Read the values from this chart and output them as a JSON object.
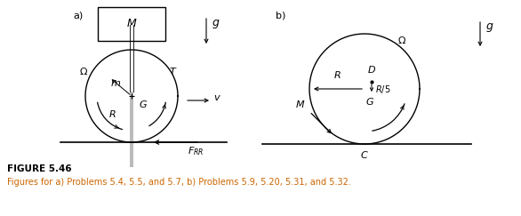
{
  "fig_width": 5.86,
  "fig_height": 2.43,
  "dpi": 100,
  "bg_color": "#ffffff",
  "text_color": "#000000",
  "orange_color": "#cc6600",
  "label_a": "a)",
  "label_b": "b)",
  "figure_label": "FIGURE 5.46",
  "figure_caption": "Figures for a) Problems 5.4, 5.5, and 5.7, b) Problems 5.9, 5.20, 5.31, and 5.32."
}
